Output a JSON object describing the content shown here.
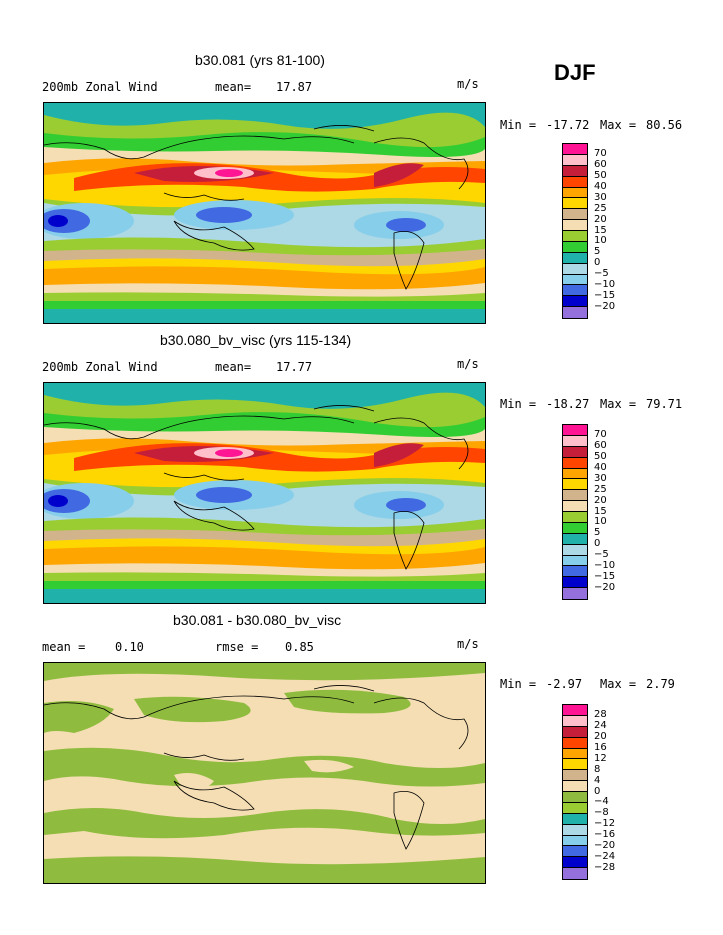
{
  "season": "DJF",
  "panels": [
    {
      "title": "b30.081 (yrs 81-100)",
      "left_label": "200mb Zonal Wind",
      "stat_label": "mean=",
      "stat_value": "17.87",
      "units": "m/s",
      "min_label": "Min =",
      "min_value": "-17.72",
      "max_label": "Max =",
      "max_value": "80.56",
      "legend_levels": [
        "70",
        "60",
        "50",
        "40",
        "30",
        "25",
        "20",
        "15",
        "10",
        "5",
        "0",
        "−5",
        "−10",
        "−15",
        "−20"
      ],
      "legend_colors": [
        "#ff1493",
        "#ffc0cb",
        "#c41e3a",
        "#ff4500",
        "#ffa500",
        "#ffd700",
        "#d2b48c",
        "#f5deb3",
        "#9acd32",
        "#32cd32",
        "#20b2aa",
        "#add8e6",
        "#87ceeb",
        "#4169e1",
        "#0000cd",
        "#9370db"
      ]
    },
    {
      "title": "b30.080_bv_visc (yrs 115-134)",
      "left_label": "200mb Zonal Wind",
      "stat_label": "mean=",
      "stat_value": "17.77",
      "units": "m/s",
      "min_label": "Min =",
      "min_value": "-18.27",
      "max_label": "Max =",
      "max_value": "79.71",
      "legend_levels": [
        "70",
        "60",
        "50",
        "40",
        "30",
        "25",
        "20",
        "15",
        "10",
        "5",
        "0",
        "−5",
        "−10",
        "−15",
        "−20"
      ],
      "legend_colors": [
        "#ff1493",
        "#ffc0cb",
        "#c41e3a",
        "#ff4500",
        "#ffa500",
        "#ffd700",
        "#d2b48c",
        "#f5deb3",
        "#9acd32",
        "#32cd32",
        "#20b2aa",
        "#add8e6",
        "#87ceeb",
        "#4169e1",
        "#0000cd",
        "#9370db"
      ]
    },
    {
      "title": "b30.081 - b30.080_bv_visc",
      "left_label": "mean =",
      "left_value": "0.10",
      "stat_label": "rmse =",
      "stat_value": "0.85",
      "units": "m/s",
      "min_label": "Min =",
      "min_value": "-2.97",
      "max_label": "Max =",
      "max_value": "2.79",
      "legend_levels": [
        "28",
        "24",
        "20",
        "16",
        "12",
        "8",
        "4",
        "0",
        "−4",
        "−8",
        "−12",
        "−16",
        "−20",
        "−24",
        "−28"
      ],
      "legend_colors": [
        "#ff1493",
        "#ffc0cb",
        "#c41e3a",
        "#ff4500",
        "#ffa500",
        "#ffd700",
        "#d2b48c",
        "#f5deb3",
        "#8fbc3f",
        "#9acd32",
        "#20b2aa",
        "#add8e6",
        "#87ceeb",
        "#4169e1",
        "#0000cd",
        "#9370db"
      ]
    }
  ],
  "chart_data": [
    {
      "type": "heatmap",
      "title": "b30.081 (yrs 81-100)",
      "variable": "200mb Zonal Wind",
      "units": "m/s",
      "mean": 17.87,
      "min": -17.72,
      "max": 80.56,
      "contour_levels": [
        -20,
        -15,
        -10,
        -5,
        0,
        5,
        10,
        15,
        20,
        25,
        30,
        40,
        50,
        60,
        70
      ]
    },
    {
      "type": "heatmap",
      "title": "b30.080_bv_visc (yrs 115-134)",
      "variable": "200mb Zonal Wind",
      "units": "m/s",
      "mean": 17.77,
      "min": -18.27,
      "max": 79.71,
      "contour_levels": [
        -20,
        -15,
        -10,
        -5,
        0,
        5,
        10,
        15,
        20,
        25,
        30,
        40,
        50,
        60,
        70
      ]
    },
    {
      "type": "heatmap",
      "title": "b30.081 - b30.080_bv_visc",
      "units": "m/s",
      "mean": 0.1,
      "rmse": 0.85,
      "min": -2.97,
      "max": 2.79,
      "contour_levels": [
        -28,
        -24,
        -20,
        -16,
        -12,
        -8,
        -4,
        0,
        4,
        8,
        12,
        16,
        20,
        24,
        28
      ]
    }
  ]
}
